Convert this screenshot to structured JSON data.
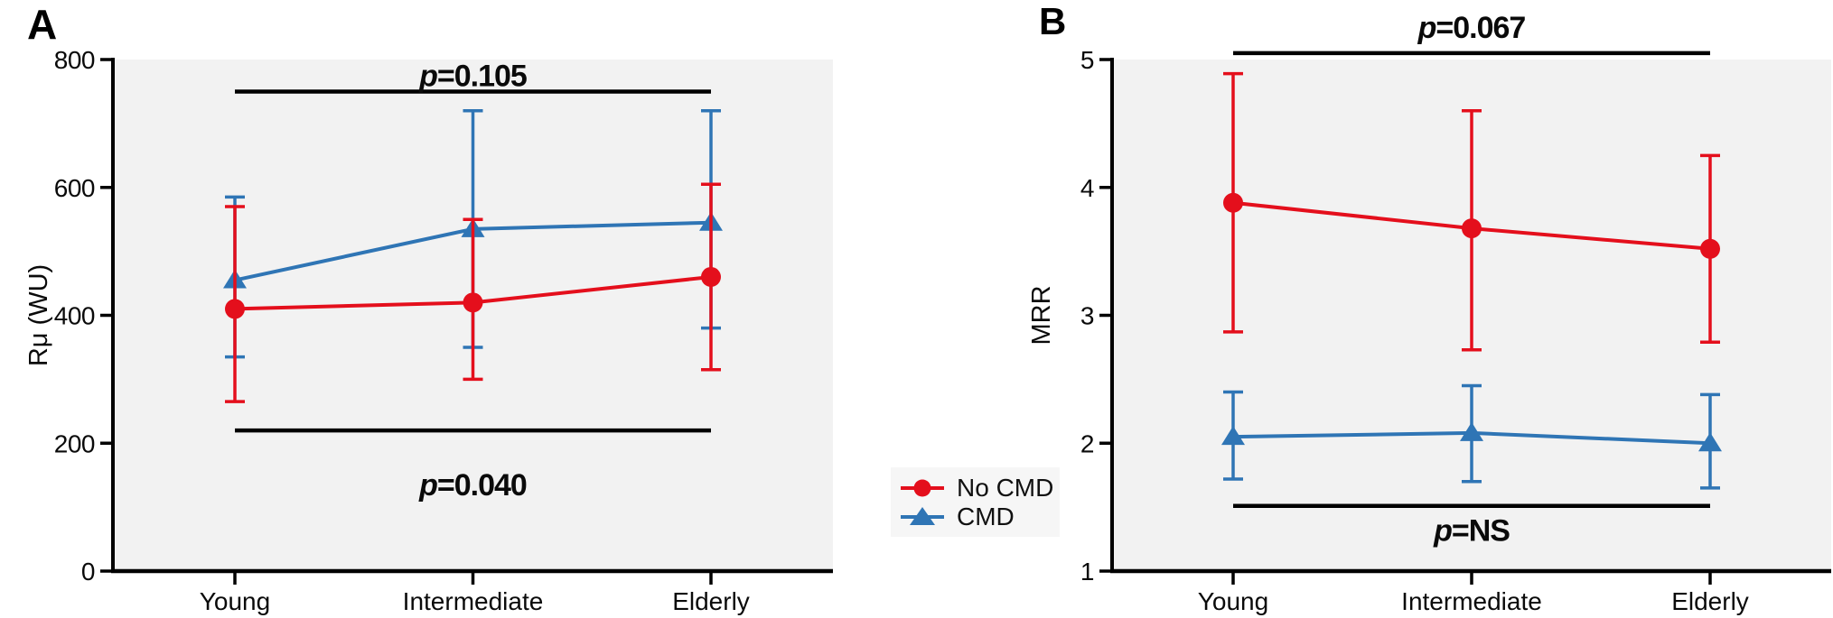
{
  "figure": {
    "bg": "#ffffff",
    "plot_bg": "#f2f2f2",
    "axis_color": "#000000",
    "colors": {
      "no_cmd": "#e40f1c",
      "cmd": "#2f75b5"
    },
    "legend": {
      "position": "between-panels",
      "items": [
        {
          "label": "No CMD",
          "marker": "circle",
          "color": "#e40f1c"
        },
        {
          "label": "CMD",
          "marker": "triangle",
          "color": "#2f75b5"
        }
      ]
    }
  },
  "chart_data": [
    {
      "type": "line",
      "panel": "A",
      "ylabel": "Rμ (WU)",
      "xlabel": "",
      "ylim": [
        0,
        800
      ],
      "yticks": [
        0,
        200,
        400,
        600,
        800
      ],
      "grid": false,
      "categories": [
        "Young",
        "Intermediate",
        "Elderly"
      ],
      "series": [
        {
          "name": "No CMD",
          "marker": "circle",
          "color": "#e40f1c",
          "values": [
            410,
            420,
            460
          ],
          "err_low": [
            265,
            300,
            315
          ],
          "err_high": [
            570,
            550,
            605
          ]
        },
        {
          "name": "CMD",
          "marker": "triangle",
          "color": "#2f75b5",
          "values": [
            455,
            535,
            545
          ],
          "err_low": [
            335,
            350,
            380
          ],
          "err_high": [
            585,
            720,
            720
          ]
        }
      ],
      "annotations": [
        {
          "text": "p=0.105",
          "y_line": 750,
          "position": "above",
          "span": [
            "Young",
            "Elderly"
          ]
        },
        {
          "text": "p=0.040",
          "y_line": 220,
          "position": "below",
          "span": [
            "Young",
            "Elderly"
          ]
        }
      ]
    },
    {
      "type": "line",
      "panel": "B",
      "ylabel": "MRR",
      "xlabel": "",
      "ylim": [
        1,
        5
      ],
      "yticks": [
        1,
        2,
        3,
        4,
        5
      ],
      "grid": false,
      "categories": [
        "Young",
        "Intermediate",
        "Elderly"
      ],
      "series": [
        {
          "name": "No CMD",
          "marker": "circle",
          "color": "#e40f1c",
          "values": [
            3.88,
            3.68,
            3.52
          ],
          "err_low": [
            2.87,
            2.73,
            2.79
          ],
          "err_high": [
            4.89,
            4.6,
            4.25
          ]
        },
        {
          "name": "CMD",
          "marker": "triangle",
          "color": "#2f75b5",
          "values": [
            2.05,
            2.08,
            2.0
          ],
          "err_low": [
            1.72,
            1.7,
            1.65
          ],
          "err_high": [
            2.4,
            2.45,
            2.38
          ]
        }
      ],
      "annotations": [
        {
          "text": "p=0.067",
          "y_line": 5.05,
          "position": "above",
          "span": [
            "Young",
            "Elderly"
          ]
        },
        {
          "text": "p=NS",
          "y_line": 1.51,
          "position": "below",
          "span": [
            "Young",
            "Elderly"
          ]
        }
      ]
    }
  ]
}
